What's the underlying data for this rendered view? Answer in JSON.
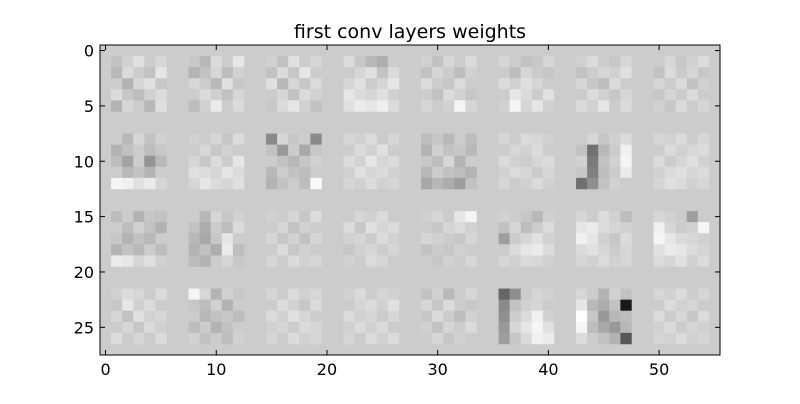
{
  "chart_data": {
    "type": "heatmap",
    "title": "first conv layers weights",
    "xlabel": "",
    "ylabel": "",
    "colormap": "gray",
    "image_shape": [
      28,
      56
    ],
    "xlim": [
      -0.5,
      55.5
    ],
    "ylim": [
      27.5,
      -0.5
    ],
    "xticks": [
      0,
      10,
      20,
      30,
      40,
      50
    ],
    "yticks": [
      0,
      5,
      10,
      15,
      20,
      25
    ],
    "grid_layout": {
      "rows": 4,
      "cols": 8,
      "filter_size": [
        5,
        5
      ],
      "padding": 2
    },
    "background_value": 0.8,
    "filters": [
      [
        [
          0.76,
          0.82,
          0.88,
          0.8,
          0.84
        ],
        [
          0.72,
          0.86,
          0.8,
          0.76,
          0.9
        ],
        [
          0.8,
          0.7,
          0.84,
          0.88,
          0.78
        ],
        [
          0.86,
          0.78,
          0.74,
          0.82,
          0.86
        ],
        [
          0.7,
          0.84,
          0.8,
          0.72,
          0.88
        ]
      ],
      [
        [
          0.78,
          0.72,
          0.86,
          0.8,
          0.9
        ],
        [
          0.7,
          0.76,
          0.84,
          0.74,
          0.82
        ],
        [
          0.84,
          0.8,
          0.72,
          0.88,
          0.78
        ],
        [
          0.8,
          0.86,
          0.82,
          0.76,
          0.84
        ],
        [
          0.74,
          0.82,
          0.92,
          0.8,
          0.86
        ]
      ],
      [
        [
          0.82,
          0.76,
          0.88,
          0.8,
          0.84
        ],
        [
          0.76,
          0.86,
          0.78,
          0.9,
          0.8
        ],
        [
          0.88,
          0.72,
          0.84,
          0.78,
          0.86
        ],
        [
          0.8,
          0.84,
          0.76,
          0.86,
          0.82
        ],
        [
          0.78,
          0.86,
          0.9,
          0.82,
          0.76
        ]
      ],
      [
        [
          0.86,
          0.78,
          0.72,
          0.68,
          0.8
        ],
        [
          0.8,
          0.84,
          0.88,
          0.76,
          0.86
        ],
        [
          0.84,
          0.88,
          0.8,
          0.84,
          0.9
        ],
        [
          0.9,
          0.86,
          0.84,
          0.88,
          0.82
        ],
        [
          0.88,
          0.92,
          0.9,
          0.94,
          0.86
        ]
      ],
      [
        [
          0.82,
          0.76,
          0.84,
          0.8,
          0.86
        ],
        [
          0.76,
          0.84,
          0.8,
          0.74,
          0.82
        ],
        [
          0.86,
          0.8,
          0.78,
          0.86,
          0.8
        ],
        [
          0.8,
          0.76,
          0.86,
          0.82,
          0.78
        ],
        [
          0.84,
          0.8,
          0.82,
          0.96,
          0.84
        ]
      ],
      [
        [
          0.84,
          0.8,
          0.76,
          0.78,
          0.84
        ],
        [
          0.8,
          0.74,
          0.84,
          0.8,
          0.78
        ],
        [
          0.86,
          0.82,
          0.88,
          0.84,
          0.8
        ],
        [
          0.8,
          0.9,
          0.86,
          0.8,
          0.88
        ],
        [
          0.82,
          0.96,
          0.84,
          0.9,
          0.82
        ]
      ],
      [
        [
          0.82,
          0.86,
          0.8,
          0.78,
          0.84
        ],
        [
          0.76,
          0.8,
          0.84,
          0.82,
          0.88
        ],
        [
          0.84,
          0.78,
          0.74,
          0.86,
          0.8
        ],
        [
          0.8,
          0.86,
          0.82,
          0.78,
          0.84
        ],
        [
          0.86,
          0.82,
          0.9,
          0.8,
          0.86
        ]
      ],
      [
        [
          0.8,
          0.84,
          0.78,
          0.82,
          0.86
        ],
        [
          0.76,
          0.86,
          0.8,
          0.84,
          0.78
        ],
        [
          0.84,
          0.8,
          0.86,
          0.76,
          0.82
        ],
        [
          0.78,
          0.84,
          0.8,
          0.86,
          0.8
        ],
        [
          0.82,
          0.78,
          0.86,
          0.8,
          0.84
        ]
      ],
      [
        [
          0.8,
          0.72,
          0.84,
          0.76,
          0.82
        ],
        [
          0.7,
          0.76,
          0.8,
          0.74,
          0.78
        ],
        [
          0.74,
          0.64,
          0.8,
          0.58,
          0.72
        ],
        [
          0.8,
          0.72,
          0.76,
          0.7,
          0.8
        ],
        [
          0.96,
          0.94,
          0.88,
          0.92,
          0.84
        ]
      ],
      [
        [
          0.82,
          0.8,
          0.84,
          0.78,
          0.86
        ],
        [
          0.8,
          0.84,
          0.78,
          0.82,
          0.8
        ],
        [
          0.84,
          0.78,
          0.86,
          0.8,
          0.9
        ],
        [
          0.88,
          0.86,
          0.84,
          0.9,
          0.86
        ],
        [
          0.84,
          0.9,
          0.86,
          0.84,
          0.88
        ]
      ],
      [
        [
          0.54,
          0.84,
          0.78,
          0.8,
          0.54
        ],
        [
          0.76,
          0.6,
          0.8,
          0.66,
          0.78
        ],
        [
          0.8,
          0.76,
          0.72,
          0.78,
          0.82
        ],
        [
          0.72,
          0.8,
          0.76,
          0.74,
          0.8
        ],
        [
          0.7,
          0.76,
          0.8,
          0.74,
          0.98
        ]
      ],
      [
        [
          0.84,
          0.82,
          0.86,
          0.8,
          0.84
        ],
        [
          0.8,
          0.86,
          0.82,
          0.88,
          0.8
        ],
        [
          0.86,
          0.82,
          0.9,
          0.84,
          0.86
        ],
        [
          0.82,
          0.88,
          0.84,
          0.86,
          0.82
        ],
        [
          0.84,
          0.82,
          0.86,
          0.82,
          0.84
        ]
      ],
      [
        [
          0.74,
          0.78,
          0.72,
          0.8,
          0.74
        ],
        [
          0.7,
          0.82,
          0.76,
          0.78,
          0.72
        ],
        [
          0.78,
          0.74,
          0.84,
          0.7,
          0.8
        ],
        [
          0.72,
          0.8,
          0.76,
          0.74,
          0.7
        ],
        [
          0.66,
          0.72,
          0.68,
          0.62,
          0.76
        ]
      ],
      [
        [
          0.84,
          0.8,
          0.86,
          0.84,
          0.82
        ],
        [
          0.8,
          0.84,
          0.82,
          0.86,
          0.8
        ],
        [
          0.86,
          0.82,
          0.8,
          0.84,
          0.86
        ],
        [
          0.82,
          0.86,
          0.84,
          0.8,
          0.84
        ],
        [
          0.84,
          0.8,
          0.82,
          0.86,
          0.82
        ]
      ],
      [
        [
          0.8,
          0.84,
          0.78,
          0.82,
          0.86
        ],
        [
          0.76,
          0.44,
          0.72,
          0.8,
          0.94
        ],
        [
          0.82,
          0.48,
          0.76,
          0.82,
          0.96
        ],
        [
          0.78,
          0.5,
          0.74,
          0.8,
          0.92
        ],
        [
          0.44,
          0.56,
          0.76,
          0.82,
          0.8
        ]
      ],
      [
        [
          0.84,
          0.82,
          0.86,
          0.8,
          0.84
        ],
        [
          0.8,
          0.86,
          0.82,
          0.84,
          0.86
        ],
        [
          0.86,
          0.8,
          0.84,
          0.88,
          0.82
        ],
        [
          0.82,
          0.86,
          0.88,
          0.84,
          0.86
        ],
        [
          0.84,
          0.88,
          0.86,
          0.82,
          0.84
        ]
      ],
      [
        [
          0.74,
          0.8,
          0.7,
          0.78,
          0.76
        ],
        [
          0.8,
          0.74,
          0.82,
          0.76,
          0.7
        ],
        [
          0.78,
          0.7,
          0.76,
          0.72,
          0.8
        ],
        [
          0.7,
          0.76,
          0.72,
          0.8,
          0.74
        ],
        [
          0.92,
          0.9,
          0.84,
          0.88,
          0.82
        ]
      ],
      [
        [
          0.8,
          0.72,
          0.84,
          0.78,
          0.82
        ],
        [
          0.76,
          0.68,
          0.8,
          0.74,
          0.86
        ],
        [
          0.72,
          0.66,
          0.78,
          0.9,
          0.8
        ],
        [
          0.7,
          0.76,
          0.68,
          0.92,
          0.74
        ],
        [
          0.74,
          0.7,
          0.8,
          0.84,
          0.78
        ]
      ],
      [
        [
          0.82,
          0.8,
          0.84,
          0.78,
          0.86
        ],
        [
          0.8,
          0.84,
          0.76,
          0.82,
          0.8
        ],
        [
          0.84,
          0.78,
          0.82,
          0.76,
          0.84
        ],
        [
          0.8,
          0.86,
          0.78,
          0.82,
          0.8
        ],
        [
          0.84,
          0.8,
          0.86,
          0.82,
          0.84
        ]
      ],
      [
        [
          0.8,
          0.84,
          0.82,
          0.86,
          0.8
        ],
        [
          0.86,
          0.78,
          0.88,
          0.84,
          0.86
        ],
        [
          0.82,
          0.84,
          0.8,
          0.86,
          0.82
        ],
        [
          0.78,
          0.82,
          0.84,
          0.8,
          0.84
        ],
        [
          0.82,
          0.8,
          0.86,
          0.84,
          0.8
        ]
      ],
      [
        [
          0.82,
          0.84,
          0.8,
          0.9,
          0.96
        ],
        [
          0.8,
          0.78,
          0.84,
          0.86,
          0.82
        ],
        [
          0.84,
          0.82,
          0.8,
          0.78,
          0.84
        ],
        [
          0.76,
          0.8,
          0.78,
          0.82,
          0.8
        ],
        [
          0.8,
          0.78,
          0.82,
          0.8,
          0.84
        ]
      ],
      [
        [
          0.82,
          0.8,
          0.78,
          0.72,
          0.82
        ],
        [
          0.76,
          0.84,
          0.74,
          0.8,
          0.86
        ],
        [
          0.62,
          0.8,
          0.84,
          0.88,
          0.82
        ],
        [
          0.8,
          0.86,
          0.9,
          0.92,
          0.86
        ],
        [
          0.84,
          0.82,
          0.86,
          0.84,
          0.82
        ]
      ],
      [
        [
          0.84,
          0.8,
          0.86,
          0.82,
          0.74
        ],
        [
          0.9,
          0.92,
          0.86,
          0.84,
          0.82
        ],
        [
          0.94,
          0.9,
          0.82,
          0.78,
          0.86
        ],
        [
          0.86,
          0.88,
          0.84,
          0.8,
          0.84
        ],
        [
          0.84,
          0.82,
          0.86,
          0.82,
          0.84
        ]
      ],
      [
        [
          0.84,
          0.82,
          0.8,
          0.62,
          0.8
        ],
        [
          0.94,
          0.84,
          0.8,
          0.82,
          0.96
        ],
        [
          0.96,
          0.9,
          0.86,
          0.84,
          0.82
        ],
        [
          0.88,
          0.92,
          0.9,
          0.86,
          0.84
        ],
        [
          0.86,
          0.84,
          0.88,
          0.82,
          0.86
        ]
      ],
      [
        [
          0.82,
          0.86,
          0.84,
          0.8,
          0.86
        ],
        [
          0.78,
          0.9,
          0.82,
          0.86,
          0.8
        ],
        [
          0.84,
          0.76,
          0.88,
          0.82,
          0.84
        ],
        [
          0.8,
          0.84,
          0.78,
          0.86,
          0.82
        ],
        [
          0.86,
          0.8,
          0.84,
          0.8,
          0.86
        ]
      ],
      [
        [
          0.96,
          0.84,
          0.7,
          0.82,
          0.78
        ],
        [
          0.78,
          0.74,
          0.82,
          0.7,
          0.8
        ],
        [
          0.8,
          0.72,
          0.76,
          0.78,
          0.74
        ],
        [
          0.74,
          0.8,
          0.7,
          0.76,
          0.8
        ],
        [
          0.82,
          0.76,
          0.8,
          0.74,
          0.82
        ]
      ],
      [
        [
          0.84,
          0.8,
          0.86,
          0.82,
          0.84
        ],
        [
          0.8,
          0.86,
          0.82,
          0.78,
          0.86
        ],
        [
          0.86,
          0.82,
          0.88,
          0.84,
          0.8
        ],
        [
          0.82,
          0.84,
          0.8,
          0.86,
          0.84
        ],
        [
          0.84,
          0.8,
          0.86,
          0.82,
          0.84
        ]
      ],
      [
        [
          0.82,
          0.86,
          0.8,
          0.84,
          0.82
        ],
        [
          0.8,
          0.84,
          0.86,
          0.82,
          0.88
        ],
        [
          0.86,
          0.82,
          0.84,
          0.8,
          0.84
        ],
        [
          0.82,
          0.86,
          0.82,
          0.86,
          0.8
        ],
        [
          0.84,
          0.8,
          0.86,
          0.82,
          0.86
        ]
      ],
      [
        [
          0.76,
          0.82,
          0.72,
          0.8,
          0.84
        ],
        [
          0.84,
          0.78,
          0.86,
          0.8,
          0.78
        ],
        [
          0.78,
          0.86,
          0.8,
          0.74,
          0.82
        ],
        [
          0.82,
          0.76,
          0.84,
          0.8,
          0.86
        ],
        [
          0.8,
          0.84,
          0.78,
          0.82,
          0.8
        ]
      ],
      [
        [
          0.4,
          0.56,
          0.8,
          0.84,
          0.82
        ],
        [
          0.54,
          0.76,
          0.82,
          0.84,
          0.8
        ],
        [
          0.56,
          0.8,
          0.86,
          0.94,
          0.82
        ],
        [
          0.6,
          0.84,
          0.9,
          0.96,
          0.88
        ],
        [
          0.62,
          0.78,
          0.86,
          0.94,
          0.92
        ]
      ],
      [
        [
          0.84,
          0.8,
          0.7,
          0.82,
          0.76
        ],
        [
          0.9,
          0.72,
          0.68,
          0.76,
          0.1
        ],
        [
          1.0,
          0.78,
          0.6,
          0.72,
          0.74
        ],
        [
          0.96,
          0.74,
          0.66,
          0.6,
          0.72
        ],
        [
          0.86,
          0.8,
          0.76,
          0.7,
          0.34
        ]
      ],
      [
        [
          0.84,
          0.82,
          0.86,
          0.8,
          0.84
        ],
        [
          0.8,
          0.86,
          0.82,
          0.84,
          0.8
        ],
        [
          0.86,
          0.8,
          0.84,
          0.78,
          0.86
        ],
        [
          0.82,
          0.86,
          0.8,
          0.84,
          0.82
        ],
        [
          0.84,
          0.82,
          0.86,
          0.82,
          0.84
        ]
      ]
    ]
  }
}
